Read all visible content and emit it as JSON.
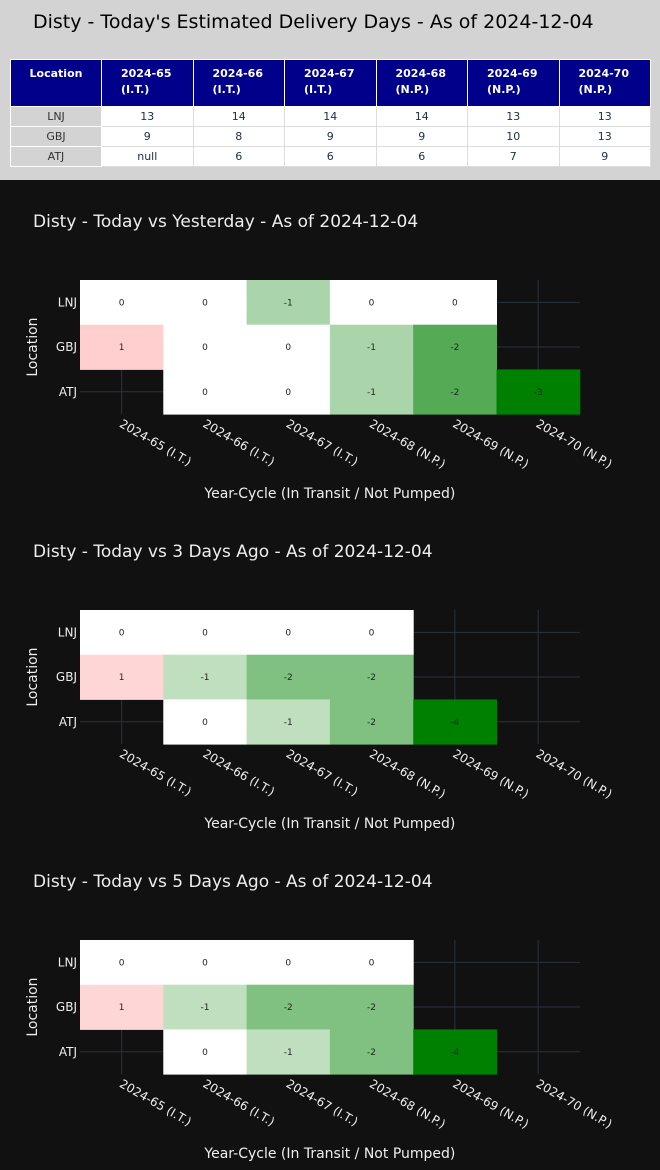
{
  "table": {
    "title": "Disty - Today's Estimated Delivery Days - As of 2024-12-04",
    "location_header": "Location",
    "columns": [
      {
        "line1": "2024-65",
        "line2": "(I.T.)"
      },
      {
        "line1": "2024-66",
        "line2": "(I.T.)"
      },
      {
        "line1": "2024-67",
        "line2": "(I.T.)"
      },
      {
        "line1": "2024-68",
        "line2": "(N.P.)"
      },
      {
        "line1": "2024-69",
        "line2": "(N.P.)"
      },
      {
        "line1": "2024-70",
        "line2": "(N.P.)"
      }
    ],
    "rows": [
      {
        "location": "LNJ",
        "values": [
          "13",
          "14",
          "14",
          "14",
          "13",
          "13"
        ]
      },
      {
        "location": "GBJ",
        "values": [
          "9",
          "8",
          "9",
          "9",
          "10",
          "13"
        ]
      },
      {
        "location": "ATJ",
        "values": [
          "null",
          "6",
          "6",
          "6",
          "7",
          "9"
        ]
      }
    ]
  },
  "chart_data": [
    {
      "type": "heatmap",
      "title": "Disty - Today vs Yesterday - As of 2024-12-04",
      "xlabel": "Year-Cycle (In Transit / Not Pumped)",
      "ylabel": "Location",
      "x": [
        "2024-65 (I.T.)",
        "2024-66 (I.T.)",
        "2024-67 (I.T.)",
        "2024-68 (N.P.)",
        "2024-69 (N.P.)",
        "2024-70 (N.P.)"
      ],
      "y": [
        "LNJ",
        "GBJ",
        "ATJ"
      ],
      "z": [
        [
          0,
          0,
          -1,
          0,
          0,
          null
        ],
        [
          1,
          0,
          0,
          -1,
          -2,
          null
        ],
        [
          null,
          0,
          0,
          -1,
          -2,
          -3
        ]
      ],
      "colorscale": {
        "positive": "#ff9999",
        "zero": "#ffffff",
        "negative": "#008000"
      },
      "zrange": [
        -3,
        3
      ]
    },
    {
      "type": "heatmap",
      "title": "Disty - Today vs 3 Days Ago - As of 2024-12-04",
      "xlabel": "Year-Cycle (In Transit / Not Pumped)",
      "ylabel": "Location",
      "x": [
        "2024-65 (I.T.)",
        "2024-66 (I.T.)",
        "2024-67 (I.T.)",
        "2024-68 (N.P.)",
        "2024-69 (N.P.)",
        "2024-70 (N.P.)"
      ],
      "y": [
        "LNJ",
        "GBJ",
        "ATJ"
      ],
      "z": [
        [
          0,
          0,
          0,
          0,
          null,
          null
        ],
        [
          1,
          -1,
          -2,
          -2,
          null,
          null
        ],
        [
          null,
          0,
          -1,
          -2,
          -4,
          null
        ]
      ],
      "colorscale": {
        "positive": "#ff9999",
        "zero": "#ffffff",
        "negative": "#008000"
      },
      "zrange": [
        -4,
        4
      ]
    },
    {
      "type": "heatmap",
      "title": "Disty - Today vs 5 Days Ago - As of 2024-12-04",
      "xlabel": "Year-Cycle (In Transit / Not Pumped)",
      "ylabel": "Location",
      "x": [
        "2024-65 (I.T.)",
        "2024-66 (I.T.)",
        "2024-67 (I.T.)",
        "2024-68 (N.P.)",
        "2024-69 (N.P.)",
        "2024-70 (N.P.)"
      ],
      "y": [
        "LNJ",
        "GBJ",
        "ATJ"
      ],
      "z": [
        [
          0,
          0,
          0,
          0,
          null,
          null
        ],
        [
          1,
          -1,
          -2,
          -2,
          null,
          null
        ],
        [
          null,
          0,
          -1,
          -2,
          -4,
          null
        ]
      ],
      "colorscale": {
        "positive": "#ff9999",
        "zero": "#ffffff",
        "negative": "#008000"
      },
      "zrange": [
        -4,
        4
      ]
    }
  ]
}
